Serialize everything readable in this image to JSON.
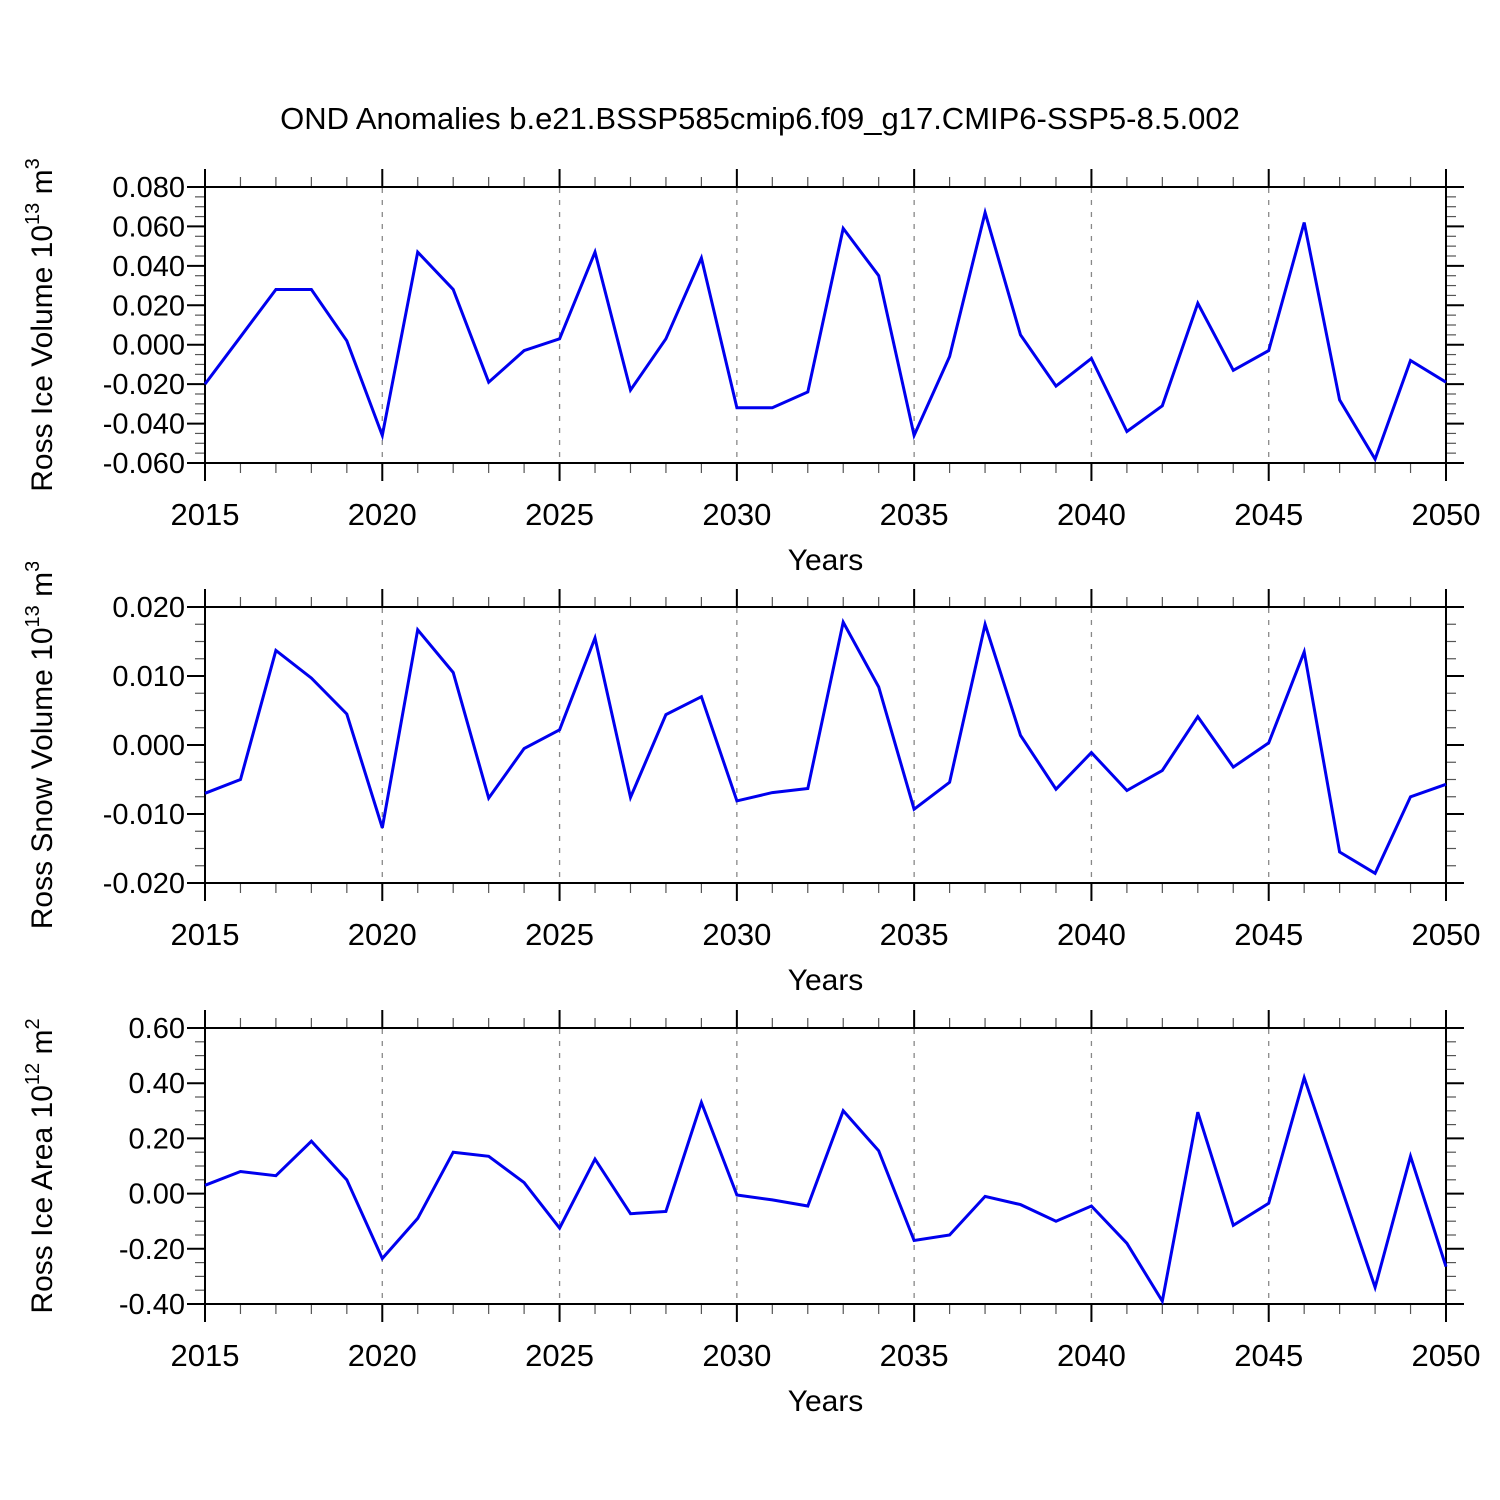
{
  "title": "OND Anomalies b.e21.BSSP585cmip6.f09_g17.CMIP6-SSP5-8.5.002",
  "colors": {
    "line": "#0000EE",
    "grid": "#888888",
    "axis": "#000000",
    "minor_tick": "#555555",
    "text": "#000000"
  },
  "chart_data": [
    {
      "type": "line",
      "name": "ross-ice-volume",
      "ylabel": {
        "prefix": "Ross Ice Volume 10",
        "sup": "13",
        "unit": " m",
        "unit_sup": "3"
      },
      "xlabel": "Years",
      "x": [
        2015,
        2016,
        2017,
        2018,
        2019,
        2020,
        2021,
        2022,
        2023,
        2024,
        2025,
        2026,
        2027,
        2028,
        2029,
        2030,
        2031,
        2032,
        2033,
        2034,
        2035,
        2036,
        2037,
        2038,
        2039,
        2040,
        2041,
        2042,
        2043,
        2044,
        2045,
        2046,
        2047,
        2048,
        2049,
        2050
      ],
      "values": [
        -0.02,
        0.004,
        0.028,
        0.028,
        0.002,
        -0.046,
        0.047,
        0.028,
        -0.019,
        -0.003,
        0.003,
        0.047,
        -0.023,
        0.003,
        0.044,
        -0.032,
        -0.032,
        -0.024,
        0.059,
        0.035,
        -0.046,
        -0.006,
        0.067,
        0.005,
        -0.021,
        -0.007,
        -0.044,
        -0.031,
        0.021,
        -0.013,
        -0.003,
        0.062,
        -0.028,
        -0.058,
        -0.008,
        -0.019
      ],
      "ylim": [
        -0.06,
        0.08
      ],
      "xlim": [
        2015,
        2050
      ],
      "ytick_values": [
        0.08,
        0.06,
        0.04,
        0.02,
        0.0,
        -0.02,
        -0.04,
        -0.06
      ],
      "ytick_labels": [
        "0.080",
        "0.060",
        "0.040",
        "0.020",
        "0.000",
        "-0.020",
        "-0.040",
        "-0.060"
      ],
      "y_minor_step": 0.005,
      "xtick_values": [
        2015,
        2020,
        2025,
        2030,
        2035,
        2040,
        2045,
        2050
      ],
      "xtick_labels": [
        "2015",
        "2020",
        "2025",
        "2030",
        "2035",
        "2040",
        "2045",
        "2050"
      ],
      "x_minor_step": 1,
      "gridlines_x": [
        2020,
        2025,
        2030,
        2035,
        2040,
        2045
      ],
      "grid": "vertical-dashed",
      "legend": "none"
    },
    {
      "type": "line",
      "name": "ross-snow-volume",
      "ylabel": {
        "prefix": "Ross Snow Volume 10",
        "sup": "13",
        "unit": " m",
        "unit_sup": "3"
      },
      "xlabel": "Years",
      "x": [
        2015,
        2016,
        2017,
        2018,
        2019,
        2020,
        2021,
        2022,
        2023,
        2024,
        2025,
        2026,
        2027,
        2028,
        2029,
        2030,
        2031,
        2032,
        2033,
        2034,
        2035,
        2036,
        2037,
        2038,
        2039,
        2040,
        2041,
        2042,
        2043,
        2044,
        2045,
        2046,
        2047,
        2048,
        2049,
        2050
      ],
      "values": [
        -0.007,
        -0.005,
        0.0137,
        0.0097,
        0.0045,
        -0.012,
        0.0167,
        0.0105,
        -0.0077,
        -0.0005,
        0.0022,
        0.0155,
        -0.0076,
        0.0044,
        0.007,
        -0.0081,
        -0.0069,
        -0.0063,
        0.0178,
        0.0084,
        -0.0093,
        -0.0054,
        0.0175,
        0.0014,
        -0.0064,
        -0.0011,
        -0.0066,
        -0.0037,
        0.0041,
        -0.0032,
        0.0003,
        0.0135,
        -0.0155,
        -0.0186,
        -0.0075,
        -0.0057
      ],
      "ylim": [
        -0.02,
        0.02
      ],
      "xlim": [
        2015,
        2050
      ],
      "ytick_values": [
        0.02,
        0.01,
        0.0,
        -0.01,
        -0.02
      ],
      "ytick_labels": [
        "0.020",
        "0.010",
        "0.000",
        "-0.010",
        "-0.020"
      ],
      "y_minor_step": 0.0025,
      "xtick_values": [
        2015,
        2020,
        2025,
        2030,
        2035,
        2040,
        2045,
        2050
      ],
      "xtick_labels": [
        "2015",
        "2020",
        "2025",
        "2030",
        "2035",
        "2040",
        "2045",
        "2050"
      ],
      "x_minor_step": 1,
      "gridlines_x": [
        2020,
        2025,
        2030,
        2035,
        2040,
        2045
      ],
      "grid": "vertical-dashed",
      "legend": "none"
    },
    {
      "type": "line",
      "name": "ross-ice-area",
      "ylabel": {
        "prefix": "Ross Ice Area 10",
        "sup": "12",
        "unit": " m",
        "unit_sup": "2"
      },
      "xlabel": "Years",
      "x": [
        2015,
        2016,
        2017,
        2018,
        2019,
        2020,
        2021,
        2022,
        2023,
        2024,
        2025,
        2026,
        2027,
        2028,
        2029,
        2030,
        2031,
        2032,
        2033,
        2034,
        2035,
        2036,
        2037,
        2038,
        2039,
        2040,
        2041,
        2042,
        2043,
        2044,
        2045,
        2046,
        2047,
        2048,
        2049,
        2050
      ],
      "values": [
        0.03,
        0.08,
        0.065,
        0.19,
        0.05,
        -0.235,
        -0.09,
        0.15,
        0.135,
        0.04,
        -0.125,
        0.125,
        -0.073,
        -0.065,
        0.33,
        -0.005,
        -0.023,
        -0.045,
        0.3,
        0.155,
        -0.17,
        -0.15,
        -0.01,
        -0.04,
        -0.1,
        -0.045,
        -0.18,
        -0.39,
        0.295,
        -0.115,
        -0.035,
        0.42,
        0.04,
        -0.34,
        0.135,
        -0.265
      ],
      "ylim": [
        -0.4,
        0.6
      ],
      "xlim": [
        2015,
        2050
      ],
      "ytick_values": [
        0.6,
        0.4,
        0.2,
        0.0,
        -0.2,
        -0.4
      ],
      "ytick_labels": [
        "0.60",
        "0.40",
        "0.20",
        "0.00",
        "-0.20",
        "-0.40"
      ],
      "y_minor_step": 0.05,
      "xtick_values": [
        2015,
        2020,
        2025,
        2030,
        2035,
        2040,
        2045,
        2050
      ],
      "xtick_labels": [
        "2015",
        "2020",
        "2025",
        "2030",
        "2035",
        "2040",
        "2045",
        "2050"
      ],
      "x_minor_step": 1,
      "gridlines_x": [
        2020,
        2025,
        2030,
        2035,
        2040,
        2045
      ],
      "grid": "vertical-dashed",
      "legend": "none"
    }
  ]
}
